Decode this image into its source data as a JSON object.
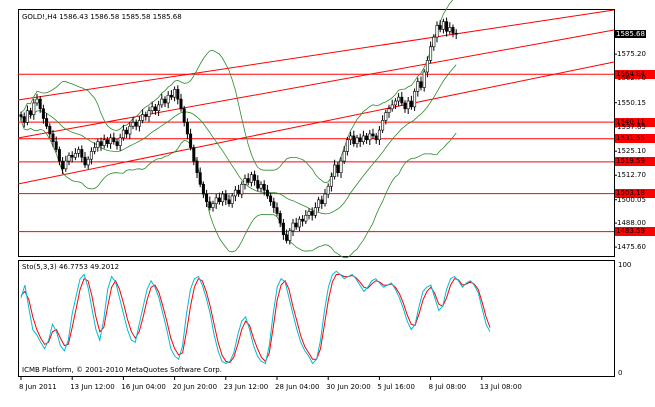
{
  "header": {
    "symbol": "GOLD!,H4",
    "ohlc": "1586.43 1586.58 1585.58 1585.68"
  },
  "indicator": {
    "label": "Sto(5,3,3) 46.7753 49.2012",
    "scale_top": "100",
    "scale_bottom": "0"
  },
  "footer": {
    "copyright": "ICMB Platform, © 2001-2010 MetaQuotes Software Corp."
  },
  "price_axis": [
    {
      "value": 1585.68,
      "label": "1585.68",
      "style": "current"
    },
    {
      "value": 1575.2,
      "label": "1575.20",
      "style": "plain"
    },
    {
      "value": 1564.84,
      "label": "1564.84",
      "style": "hline"
    },
    {
      "value": 1562.7,
      "label": "1562.70",
      "style": "plain"
    },
    {
      "value": 1550.15,
      "label": "1550.15",
      "style": "plain"
    },
    {
      "value": 1540.11,
      "label": "1540.11",
      "style": "hline"
    },
    {
      "value": 1537.65,
      "label": "1537.65",
      "style": "plain"
    },
    {
      "value": 1531.55,
      "label": "1531.55",
      "style": "hline"
    },
    {
      "value": 1525.1,
      "label": "1525.10",
      "style": "plain"
    },
    {
      "value": 1519.59,
      "label": "1519.59",
      "style": "hline"
    },
    {
      "value": 1512.7,
      "label": "1512.70",
      "style": "plain"
    },
    {
      "value": 1503.18,
      "label": "1503.18",
      "style": "hline"
    },
    {
      "value": 1500.05,
      "label": "1500.05",
      "style": "plain"
    },
    {
      "value": 1488.0,
      "label": "1488.00",
      "style": "plain"
    },
    {
      "value": 1483.59,
      "label": "1483.59",
      "style": "hline"
    },
    {
      "value": 1475.6,
      "label": "1475.60",
      "style": "plain"
    }
  ],
  "dates": [
    {
      "label": "8 Jun 2011",
      "bar": 0
    },
    {
      "label": "13 Jun 12:00",
      "bar": 16
    },
    {
      "label": "16 Jun 04:00",
      "bar": 32
    },
    {
      "label": "20 Jun 20:00",
      "bar": 48
    },
    {
      "label": "23 Jun 12:00",
      "bar": 64
    },
    {
      "label": "28 Jun 04:00",
      "bar": 80
    },
    {
      "label": "30 Jun 20:00",
      "bar": 96
    },
    {
      "label": "5 Jul 16:00",
      "bar": 112
    },
    {
      "label": "8 Jul 08:00",
      "bar": 128
    },
    {
      "label": "13 Jul 08:00",
      "bar": 144
    }
  ],
  "colors": {
    "bull": "#ffffff",
    "bear": "#000000",
    "bands": "#2e8b2e",
    "trendlines": "#ff0000",
    "stoch_main": "#00bcd4",
    "stoch_signal": "#ff0000",
    "hline_label_bg": "#ff0000"
  },
  "chart_data": {
    "type": "candlestick",
    "price_range": [
      1471,
      1598
    ],
    "closes": [
      1543,
      1540,
      1546,
      1544,
      1550,
      1552,
      1547,
      1542,
      1538,
      1534,
      1530,
      1526,
      1520,
      1516,
      1520,
      1523,
      1522,
      1524,
      1526,
      1522,
      1518,
      1521,
      1525,
      1527,
      1530,
      1528,
      1531,
      1529,
      1532,
      1530,
      1528,
      1532,
      1536,
      1534,
      1538,
      1540,
      1538,
      1541,
      1544,
      1543,
      1546,
      1548,
      1546,
      1549,
      1552,
      1550,
      1554,
      1553,
      1557,
      1552,
      1547,
      1540,
      1534,
      1527,
      1520,
      1514,
      1508,
      1503,
      1499,
      1496,
      1498,
      1501,
      1499,
      1503,
      1500,
      1498,
      1502,
      1505,
      1503,
      1508,
      1511,
      1509,
      1513,
      1510,
      1506,
      1508,
      1505,
      1502,
      1499,
      1496,
      1493,
      1488,
      1482,
      1479,
      1484,
      1488,
      1486,
      1490,
      1489,
      1492,
      1494,
      1492,
      1496,
      1500,
      1498,
      1503,
      1507,
      1512,
      1518,
      1514,
      1520,
      1525,
      1531,
      1533,
      1529,
      1532,
      1530,
      1533,
      1531,
      1534,
      1533,
      1531,
      1536,
      1541,
      1545,
      1547,
      1549,
      1551,
      1553,
      1550,
      1547,
      1551,
      1548,
      1556,
      1561,
      1558,
      1566,
      1572,
      1579,
      1584,
      1590,
      1588,
      1592,
      1587,
      1589,
      1586,
      1585.68
    ]
  },
  "stochastic": {
    "main": [
      70,
      82,
      60,
      40,
      35,
      28,
      22,
      30,
      45,
      38,
      25,
      20,
      30,
      55,
      72,
      88,
      92,
      80,
      60,
      40,
      30,
      50,
      78,
      90,
      85,
      70,
      55,
      40,
      30,
      28,
      45,
      62,
      78,
      86,
      80,
      70,
      55,
      40,
      22,
      15,
      12,
      25,
      55,
      78,
      88,
      90,
      82,
      70,
      55,
      35,
      20,
      10,
      8,
      10,
      18,
      35,
      48,
      52,
      40,
      25,
      15,
      10,
      8,
      25,
      55,
      80,
      88,
      85,
      70,
      55,
      40,
      28,
      20,
      15,
      8,
      12,
      30,
      58,
      80,
      92,
      95,
      92,
      88,
      90,
      92,
      88,
      82,
      76,
      80,
      86,
      88,
      84,
      80,
      82,
      84,
      78,
      70,
      60,
      48,
      40,
      45,
      62,
      76,
      80,
      82,
      70,
      58,
      62,
      78,
      88,
      90,
      86,
      80,
      84,
      86,
      82,
      75,
      60,
      45,
      38
    ],
    "signal": [
      72,
      76,
      68,
      52,
      40,
      32,
      26,
      28,
      38,
      40,
      32,
      25,
      26,
      42,
      60,
      78,
      88,
      86,
      72,
      52,
      38,
      42,
      62,
      80,
      86,
      78,
      65,
      50,
      38,
      32,
      38,
      52,
      68,
      80,
      82,
      75,
      62,
      48,
      32,
      22,
      16,
      18,
      38,
      62,
      80,
      88,
      86,
      76,
      62,
      45,
      28,
      16,
      10,
      9,
      14,
      26,
      40,
      48,
      44,
      32,
      22,
      14,
      10,
      18,
      42,
      68,
      82,
      86,
      78,
      62,
      48,
      34,
      24,
      18,
      12,
      12,
      22,
      45,
      68,
      85,
      92,
      92,
      90,
      90,
      91,
      89,
      85,
      80,
      79,
      83,
      86,
      85,
      82,
      82,
      83,
      80,
      74,
      65,
      54,
      45,
      44,
      55,
      68,
      76,
      80,
      74,
      64,
      62,
      70,
      82,
      88,
      87,
      82,
      83,
      85,
      83,
      78,
      66,
      52,
      42
    ]
  }
}
